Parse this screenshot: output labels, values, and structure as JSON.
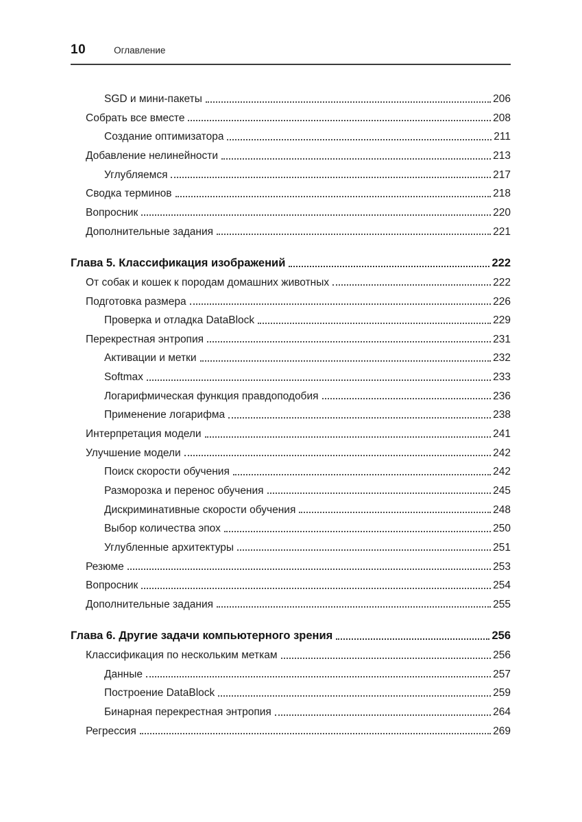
{
  "page_header": {
    "page_number": "10",
    "title": "Оглавление"
  },
  "colors": {
    "text": "#1d1d1d",
    "rule": "#3a3a3a",
    "dot_leader": "#4d4d4d"
  },
  "toc_entries": [
    {
      "label": "SGD и мини-пакеты",
      "page": "206",
      "level": 2,
      "chapter": false
    },
    {
      "label": "Собрать все вместе",
      "page": "208",
      "level": 1,
      "chapter": false
    },
    {
      "label": "Создание оптимизатора",
      "page": "211",
      "level": 2,
      "chapter": false
    },
    {
      "label": "Добавление нелинейности",
      "page": "213",
      "level": 1,
      "chapter": false
    },
    {
      "label": "Углубляемся",
      "page": "217",
      "level": 2,
      "chapter": false
    },
    {
      "label": "Сводка терминов",
      "page": "218",
      "level": 1,
      "chapter": false
    },
    {
      "label": "Вопросник",
      "page": "220",
      "level": 1,
      "chapter": false
    },
    {
      "label": "Дополнительные задания",
      "page": "221",
      "level": 1,
      "chapter": false
    },
    {
      "label": "Глава 5. Классификация изображений",
      "page": "222",
      "level": 0,
      "chapter": true
    },
    {
      "label": "От собак и кошек к породам домашних животных",
      "page": "222",
      "level": 1,
      "chapter": false
    },
    {
      "label": "Подготовка размера",
      "page": "226",
      "level": 1,
      "chapter": false
    },
    {
      "label": "Проверка и отладка DataBlock",
      "page": "229",
      "level": 2,
      "chapter": false
    },
    {
      "label": "Перекрестная энтропия",
      "page": "231",
      "level": 1,
      "chapter": false
    },
    {
      "label": "Активации и метки",
      "page": "232",
      "level": 2,
      "chapter": false
    },
    {
      "label": "Softmax",
      "page": "233",
      "level": 2,
      "chapter": false
    },
    {
      "label": "Логарифмическая функция правдоподобия",
      "page": "236",
      "level": 2,
      "chapter": false
    },
    {
      "label": "Применение логарифма",
      "page": "238",
      "level": 2,
      "chapter": false
    },
    {
      "label": "Интерпретация модели",
      "page": "241",
      "level": 1,
      "chapter": false
    },
    {
      "label": "Улучшение модели",
      "page": "242",
      "level": 1,
      "chapter": false
    },
    {
      "label": "Поиск скорости обучения",
      "page": "242",
      "level": 2,
      "chapter": false
    },
    {
      "label": "Разморозка и перенос обучения",
      "page": "245",
      "level": 2,
      "chapter": false
    },
    {
      "label": "Дискриминативные скорости обучения",
      "page": "248",
      "level": 2,
      "chapter": false
    },
    {
      "label": "Выбор количества эпох",
      "page": "250",
      "level": 2,
      "chapter": false
    },
    {
      "label": "Углубленные архитектуры",
      "page": "251",
      "level": 2,
      "chapter": false
    },
    {
      "label": "Резюме",
      "page": "253",
      "level": 1,
      "chapter": false
    },
    {
      "label": "Вопросник",
      "page": "254",
      "level": 1,
      "chapter": false
    },
    {
      "label": "Дополнительные задания",
      "page": "255",
      "level": 1,
      "chapter": false
    },
    {
      "label": "Глава 6. Другие задачи компьютерного зрения",
      "page": "256",
      "level": 0,
      "chapter": true
    },
    {
      "label": "Классификация по нескольким меткам",
      "page": "256",
      "level": 1,
      "chapter": false
    },
    {
      "label": "Данные",
      "page": "257",
      "level": 2,
      "chapter": false
    },
    {
      "label": "Построение DataBlock",
      "page": "259",
      "level": 2,
      "chapter": false
    },
    {
      "label": "Бинарная перекрестная энтропия",
      "page": "264",
      "level": 2,
      "chapter": false
    },
    {
      "label": "Регрессия",
      "page": "269",
      "level": 1,
      "chapter": false
    }
  ]
}
